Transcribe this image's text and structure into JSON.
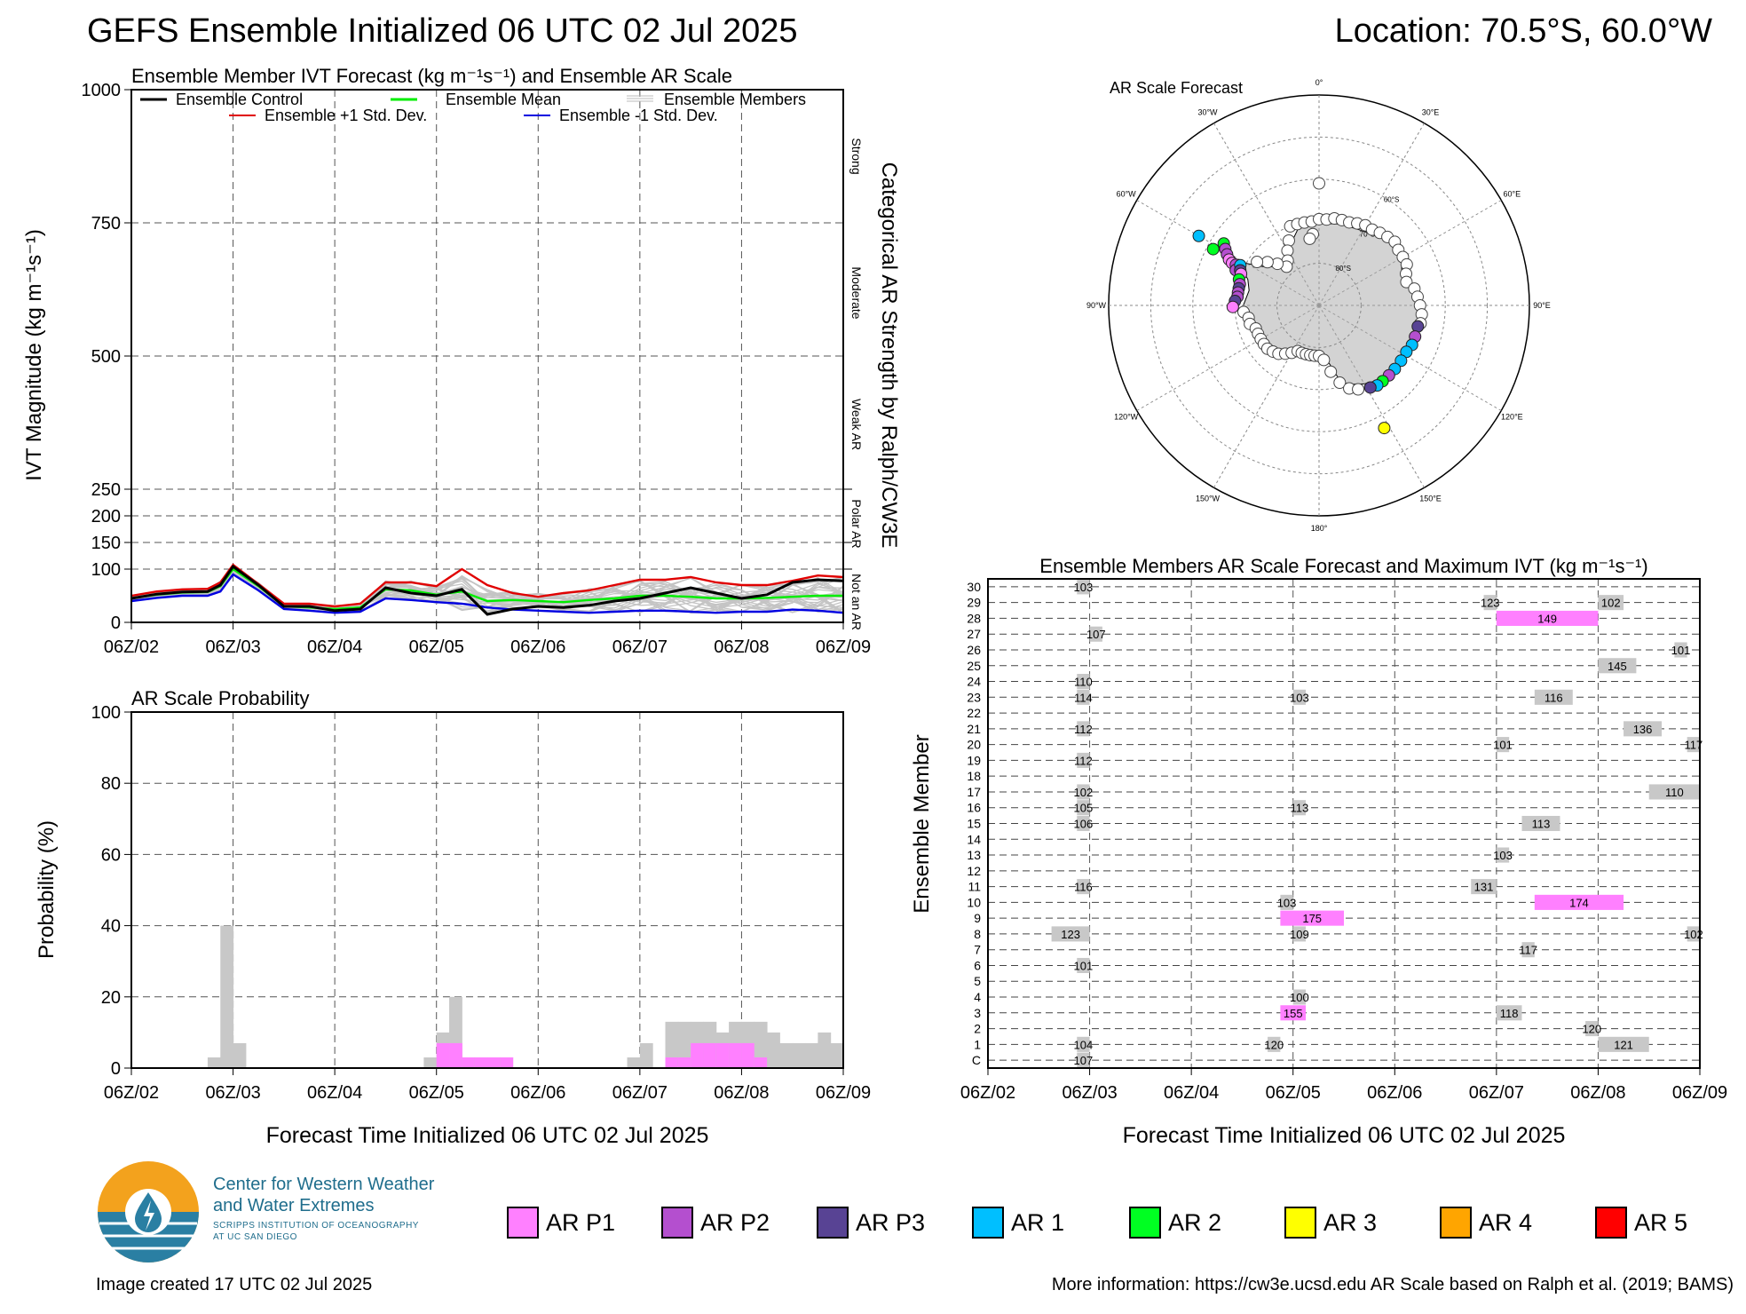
{
  "header": {
    "title": "GEFS Ensemble Initialized 06 UTC 02 Jul 2025",
    "location": "Location: 70.5°S, 60.0°W"
  },
  "footer": {
    "created": "Image created 17 UTC 02 Jul 2025",
    "info": "More information: https://cw3e.ucsd.edu AR Scale based on Ralph et al. (2019; BAMS)"
  },
  "logo": {
    "line1": "Center for Western Weather",
    "line2": "and Water Extremes",
    "line3": "SCRIPPS INSTITUTION OF OCEANOGRAPHY",
    "line4": "AT UC SAN DIEGO"
  },
  "colors": {
    "ar_p1": "#ff80ff",
    "ar_p2": "#b44fcf",
    "ar_p3": "#584394",
    "ar_1": "#00bfff",
    "ar_2": "#00ff22",
    "ar_3": "#ffff00",
    "ar_4": "#ffa500",
    "ar_5": "#ff0000",
    "below": "#c8c8c8"
  },
  "ar_legend": [
    {
      "label": "AR P1",
      "color": "#ff80ff"
    },
    {
      "label": "AR P2",
      "color": "#b44fcf"
    },
    {
      "label": "AR P3",
      "color": "#584394"
    },
    {
      "label": "AR 1",
      "color": "#00bfff"
    },
    {
      "label": "AR 2",
      "color": "#00ff22"
    },
    {
      "label": "AR 3",
      "color": "#ffff00"
    },
    {
      "label": "AR 4",
      "color": "#ffa500"
    },
    {
      "label": "AR 5",
      "color": "#ff0000"
    }
  ],
  "time_ticks": [
    "06Z/02",
    "06Z/03",
    "06Z/04",
    "06Z/05",
    "06Z/06",
    "06Z/07",
    "06Z/08",
    "06Z/09"
  ],
  "chart_data": [
    {
      "type": "line",
      "title": "Ensemble Member IVT Forecast (kg m⁻¹s⁻¹) and Ensemble AR Scale",
      "xlabel": "",
      "ylabel": "IVT Magnitude (kg m⁻¹s⁻¹)",
      "right_label": "Categorical AR Strength by Ralph/CW3E",
      "categories_right": [
        "Strong",
        "Moderate",
        "Weak AR",
        "Polar AR",
        "Not an AR"
      ],
      "ylim": [
        0,
        1000
      ],
      "y_ticks": [
        0,
        100,
        150,
        200,
        250,
        500,
        750,
        1000
      ],
      "xlim_hours": [
        0,
        168
      ],
      "legend": {
        "control": "Ensemble Control",
        "mean": "Ensemble Mean",
        "members": "Ensemble Members",
        "plus": "Ensemble +1 Std. Dev.",
        "minus": "Ensemble -1 Std. Dev."
      },
      "hours": [
        0,
        6,
        12,
        18,
        21,
        24,
        30,
        36,
        42,
        48,
        54,
        60,
        66,
        72,
        78,
        84,
        90,
        96,
        102,
        108,
        114,
        120,
        126,
        132,
        138,
        144,
        150,
        156,
        162,
        168
      ],
      "series": [
        {
          "name": "Ensemble Control",
          "color": "#000000",
          "values": [
            45,
            53,
            57,
            58,
            70,
            105,
            70,
            30,
            30,
            22,
            25,
            65,
            55,
            50,
            62,
            15,
            25,
            30,
            28,
            32,
            40,
            45,
            55,
            65,
            55,
            45,
            52,
            75,
            80,
            78
          ]
        },
        {
          "name": "Ensemble Mean",
          "color": "#00ee00",
          "values": [
            45,
            52,
            56,
            57,
            68,
            100,
            68,
            30,
            28,
            25,
            28,
            62,
            60,
            52,
            58,
            40,
            42,
            40,
            38,
            42,
            45,
            50,
            50,
            48,
            45,
            45,
            46,
            48,
            50,
            50
          ]
        },
        {
          "name": "Ensemble +1 Std. Dev.",
          "color": "#e00000",
          "values": [
            50,
            58,
            62,
            63,
            75,
            108,
            72,
            35,
            35,
            30,
            35,
            75,
            75,
            68,
            100,
            70,
            55,
            48,
            55,
            60,
            70,
            80,
            80,
            85,
            75,
            70,
            70,
            78,
            88,
            85
          ]
        },
        {
          "name": "Ensemble -1 Std. Dev.",
          "color": "#0000e0",
          "values": [
            40,
            46,
            50,
            50,
            58,
            90,
            60,
            25,
            22,
            18,
            20,
            45,
            42,
            38,
            35,
            28,
            24,
            22,
            20,
            18,
            20,
            22,
            22,
            20,
            18,
            20,
            20,
            24,
            22,
            18
          ]
        }
      ]
    },
    {
      "type": "bar",
      "title": "AR Scale Probability",
      "xlabel": "Forecast Time Initialized 06 UTC 02 Jul 2025",
      "ylabel": "Probability (%)",
      "ylim": [
        0,
        100
      ],
      "y_ticks": [
        0,
        20,
        40,
        60,
        80,
        100
      ],
      "xlim_hours": [
        0,
        168
      ],
      "bin_hours": 3,
      "bins": [
        {
          "start": 18,
          "any": 3,
          "p1": 0
        },
        {
          "start": 21,
          "any": 40,
          "p1": 0
        },
        {
          "start": 24,
          "any": 7,
          "p1": 0
        },
        {
          "start": 69,
          "any": 3,
          "p1": 0
        },
        {
          "start": 72,
          "any": 10,
          "p1": 7
        },
        {
          "start": 75,
          "any": 20,
          "p1": 7
        },
        {
          "start": 78,
          "any": 3,
          "p1": 3
        },
        {
          "start": 81,
          "any": 3,
          "p1": 3
        },
        {
          "start": 84,
          "any": 3,
          "p1": 3
        },
        {
          "start": 87,
          "any": 3,
          "p1": 3
        },
        {
          "start": 117,
          "any": 3,
          "p1": 0
        },
        {
          "start": 120,
          "any": 7,
          "p1": 0
        },
        {
          "start": 126,
          "any": 13,
          "p1": 3
        },
        {
          "start": 129,
          "any": 13,
          "p1": 3
        },
        {
          "start": 132,
          "any": 13,
          "p1": 7
        },
        {
          "start": 135,
          "any": 13,
          "p1": 7
        },
        {
          "start": 138,
          "any": 10,
          "p1": 7
        },
        {
          "start": 141,
          "any": 13,
          "p1": 7
        },
        {
          "start": 144,
          "any": 13,
          "p1": 7
        },
        {
          "start": 147,
          "any": 13,
          "p1": 3
        },
        {
          "start": 150,
          "any": 10,
          "p1": 0
        },
        {
          "start": 153,
          "any": 7,
          "p1": 0
        },
        {
          "start": 156,
          "any": 7,
          "p1": 0
        },
        {
          "start": 159,
          "any": 7,
          "p1": 0
        },
        {
          "start": 162,
          "any": 10,
          "p1": 0
        },
        {
          "start": 165,
          "any": 7,
          "p1": 0
        }
      ]
    },
    {
      "type": "heatmap",
      "title": "Ensemble Members AR Scale Forecast and Maximum IVT (kg m⁻¹s⁻¹)",
      "xlabel": "Forecast Time Initialized 06 UTC 02 Jul 2025",
      "ylabel": "Ensemble Member",
      "members": [
        "C",
        "1",
        "2",
        "3",
        "4",
        "5",
        "6",
        "7",
        "8",
        "9",
        "10",
        "11",
        "12",
        "13",
        "14",
        "15",
        "16",
        "17",
        "18",
        "19",
        "20",
        "21",
        "22",
        "23",
        "24",
        "25",
        "26",
        "27",
        "28",
        "29",
        "30"
      ],
      "xlim_hours": [
        0,
        168
      ],
      "events": [
        {
          "member": "30",
          "start": 21,
          "end": 24,
          "cat": "below",
          "ivt": "103"
        },
        {
          "member": "29",
          "start": 117,
          "end": 120,
          "cat": "below",
          "ivt": "123"
        },
        {
          "member": "29",
          "start": 144,
          "end": 150,
          "cat": "below",
          "ivt": "102"
        },
        {
          "member": "28",
          "start": 120,
          "end": 144,
          "cat": "p1",
          "ivt": "149"
        },
        {
          "member": "27",
          "start": 24,
          "end": 27,
          "cat": "below",
          "ivt": "107"
        },
        {
          "member": "26",
          "start": 162,
          "end": 165,
          "cat": "below",
          "ivt": "101"
        },
        {
          "member": "25",
          "start": 144,
          "end": 153,
          "cat": "below",
          "ivt": "145"
        },
        {
          "member": "24",
          "start": 21,
          "end": 24,
          "cat": "below",
          "ivt": "110"
        },
        {
          "member": "23",
          "start": 21,
          "end": 24,
          "cat": "below",
          "ivt": "114"
        },
        {
          "member": "23",
          "start": 72,
          "end": 75,
          "cat": "below",
          "ivt": "103"
        },
        {
          "member": "23",
          "start": 129,
          "end": 138,
          "cat": "below",
          "ivt": "116"
        },
        {
          "member": "21",
          "start": 21,
          "end": 24,
          "cat": "below",
          "ivt": "112"
        },
        {
          "member": "21",
          "start": 150,
          "end": 159,
          "cat": "below",
          "ivt": "136"
        },
        {
          "member": "20",
          "start": 120,
          "end": 123,
          "cat": "below",
          "ivt": "101"
        },
        {
          "member": "20",
          "start": 165,
          "end": 168,
          "cat": "below",
          "ivt": "117"
        },
        {
          "member": "19",
          "start": 21,
          "end": 24,
          "cat": "below",
          "ivt": "112"
        },
        {
          "member": "17",
          "start": 21,
          "end": 24,
          "cat": "below",
          "ivt": "102"
        },
        {
          "member": "17",
          "start": 156,
          "end": 168,
          "cat": "below",
          "ivt": "110"
        },
        {
          "member": "16",
          "start": 21,
          "end": 24,
          "cat": "below",
          "ivt": "105"
        },
        {
          "member": "16",
          "start": 72,
          "end": 75,
          "cat": "below",
          "ivt": "113"
        },
        {
          "member": "15",
          "start": 21,
          "end": 24,
          "cat": "below",
          "ivt": "106"
        },
        {
          "member": "15",
          "start": 126,
          "end": 135,
          "cat": "below",
          "ivt": "113"
        },
        {
          "member": "13",
          "start": 120,
          "end": 123,
          "cat": "below",
          "ivt": "103"
        },
        {
          "member": "11",
          "start": 21,
          "end": 24,
          "cat": "below",
          "ivt": "116"
        },
        {
          "member": "11",
          "start": 114,
          "end": 120,
          "cat": "below",
          "ivt": "131"
        },
        {
          "member": "10",
          "start": 69,
          "end": 72,
          "cat": "below",
          "ivt": "103"
        },
        {
          "member": "10",
          "start": 129,
          "end": 150,
          "cat": "p1",
          "ivt": "174"
        },
        {
          "member": "9",
          "start": 69,
          "end": 84,
          "cat": "p1",
          "ivt": "175"
        },
        {
          "member": "8",
          "start": 15,
          "end": 24,
          "cat": "below",
          "ivt": "123"
        },
        {
          "member": "8",
          "start": 72,
          "end": 75,
          "cat": "below",
          "ivt": "109"
        },
        {
          "member": "8",
          "start": 165,
          "end": 168,
          "cat": "below",
          "ivt": "102"
        },
        {
          "member": "7",
          "start": 126,
          "end": 129,
          "cat": "below",
          "ivt": "117"
        },
        {
          "member": "6",
          "start": 21,
          "end": 24,
          "cat": "below",
          "ivt": "101"
        },
        {
          "member": "4",
          "start": 72,
          "end": 75,
          "cat": "below",
          "ivt": "100"
        },
        {
          "member": "3",
          "start": 69,
          "end": 75,
          "cat": "p1",
          "ivt": "155"
        },
        {
          "member": "3",
          "start": 120,
          "end": 126,
          "cat": "below",
          "ivt": "118"
        },
        {
          "member": "2",
          "start": 141,
          "end": 144,
          "cat": "below",
          "ivt": "120"
        },
        {
          "member": "1",
          "start": 21,
          "end": 24,
          "cat": "below",
          "ivt": "104"
        },
        {
          "member": "1",
          "start": 66,
          "end": 69,
          "cat": "below",
          "ivt": "120"
        },
        {
          "member": "1",
          "start": 144,
          "end": 156,
          "cat": "below",
          "ivt": "121"
        },
        {
          "member": "C",
          "start": 21,
          "end": 24,
          "cat": "below",
          "ivt": "107"
        }
      ]
    }
  ],
  "map": {
    "title": "AR Scale Forecast",
    "lon_labels": [
      "0°",
      "30°E",
      "60°E",
      "90°E",
      "120°E",
      "150°E",
      "180°",
      "150°W",
      "120°W",
      "90°W",
      "60°W",
      "30°W"
    ],
    "lat_labels": [
      "60°S",
      "70°S",
      "80°S"
    ],
    "points": [
      {
        "lon": -60,
        "lat": -57,
        "cat": "ar_1"
      },
      {
        "lon": -62,
        "lat": -61.5,
        "cat": "ar_2"
      },
      {
        "lon": -57,
        "lat": -63,
        "cat": "ar_2"
      },
      {
        "lon": -59,
        "lat": -64,
        "cat": "ar_p2"
      },
      {
        "lon": -61,
        "lat": -65,
        "cat": "ar_p2"
      },
      {
        "lon": -63,
        "lat": -66,
        "cat": "ar_p1"
      },
      {
        "lon": -64,
        "lat": -67,
        "cat": "ar_p1"
      },
      {
        "lon": -64,
        "lat": -68,
        "cat": "ar_p2"
      },
      {
        "lon": -67,
        "lat": -68.5,
        "cat": "ar_p2"
      },
      {
        "lon": -63,
        "lat": -69,
        "cat": "ar_1"
      },
      {
        "lon": -66,
        "lat": -69.5,
        "cat": "ar_p3"
      },
      {
        "lon": -68,
        "lat": -70,
        "cat": "ar_p1"
      },
      {
        "lon": -72,
        "lat": -70,
        "cat": "ar_2"
      },
      {
        "lon": -75,
        "lat": -70.5,
        "cat": "ar_p2"
      },
      {
        "lon": -78,
        "lat": -70.5,
        "cat": "ar_p3"
      },
      {
        "lon": -81,
        "lat": -70.5,
        "cat": "ar_p2"
      },
      {
        "lon": -84,
        "lat": -70.5,
        "cat": "ar_p2"
      },
      {
        "lon": -87,
        "lat": -70,
        "cat": "ar_p3"
      },
      {
        "lon": -91,
        "lat": -69.5,
        "cat": "ar_p1"
      },
      {
        "lon": 102,
        "lat": -66,
        "cat": "ar_p3"
      },
      {
        "lon": 108,
        "lat": -66,
        "cat": "ar_p2"
      },
      {
        "lon": 113,
        "lat": -66,
        "cat": "ar_1"
      },
      {
        "lon": 118,
        "lat": -66.5,
        "cat": "ar_1"
      },
      {
        "lon": 124,
        "lat": -66.5,
        "cat": "ar_1"
      },
      {
        "lon": 130,
        "lat": -66.5,
        "cat": "ar_1"
      },
      {
        "lon": 135,
        "lat": -66.5,
        "cat": "ar_p2"
      },
      {
        "lon": 140,
        "lat": -66.5,
        "cat": "ar_2"
      },
      {
        "lon": 144,
        "lat": -66.5,
        "cat": "ar_1"
      },
      {
        "lon": 148,
        "lat": -67,
        "cat": "ar_p3"
      },
      {
        "lon": 152,
        "lat": -57,
        "cat": "ar_3"
      }
    ],
    "none_points_lon_lat": [
      [
        0,
        -61
      ],
      [
        -20,
        -70
      ],
      [
        -15,
        -70
      ],
      [
        -10,
        -70
      ],
      [
        -5,
        -70
      ],
      [
        0,
        -69.5
      ],
      [
        5,
        -69.5
      ],
      [
        10,
        -69
      ],
      [
        15,
        -69
      ],
      [
        20,
        -69
      ],
      [
        25,
        -68.5
      ],
      [
        30,
        -68
      ],
      [
        35,
        -68
      ],
      [
        40,
        -67.5
      ],
      [
        45,
        -67
      ],
      [
        50,
        -66.5
      ],
      [
        55,
        -67
      ],
      [
        60,
        -67
      ],
      [
        65,
        -67
      ],
      [
        70,
        -68
      ],
      [
        75,
        -68.5
      ],
      [
        80,
        -67
      ],
      [
        85,
        -66.5
      ],
      [
        90,
        -66
      ],
      [
        95,
        -65.5
      ],
      [
        100,
        -65.5
      ],
      [
        -25,
        -73
      ],
      [
        -30,
        -75
      ],
      [
        -35,
        -77
      ],
      [
        -40,
        -78
      ],
      [
        -45,
        -76
      ],
      [
        -50,
        -74
      ],
      [
        -55,
        -72
      ],
      [
        -95,
        -72
      ],
      [
        -100,
        -73
      ],
      [
        -105,
        -73
      ],
      [
        -110,
        -74
      ],
      [
        -115,
        -74
      ],
      [
        -120,
        -74
      ],
      [
        -125,
        -74
      ],
      [
        -130,
        -74
      ],
      [
        -135,
        -74.5
      ],
      [
        -140,
        -75
      ],
      [
        -145,
        -76
      ],
      [
        -150,
        -77
      ],
      [
        -155,
        -78
      ],
      [
        -160,
        -78
      ],
      [
        -165,
        -78
      ],
      [
        -170,
        -78
      ],
      [
        -175,
        -78
      ],
      [
        180,
        -78
      ],
      [
        175,
        -77
      ],
      [
        170,
        -74
      ],
      [
        165,
        -71
      ],
      [
        160,
        -69
      ],
      [
        155,
        -68
      ],
      [
        -5,
        -73
      ],
      [
        -8,
        -74
      ]
    ]
  }
}
